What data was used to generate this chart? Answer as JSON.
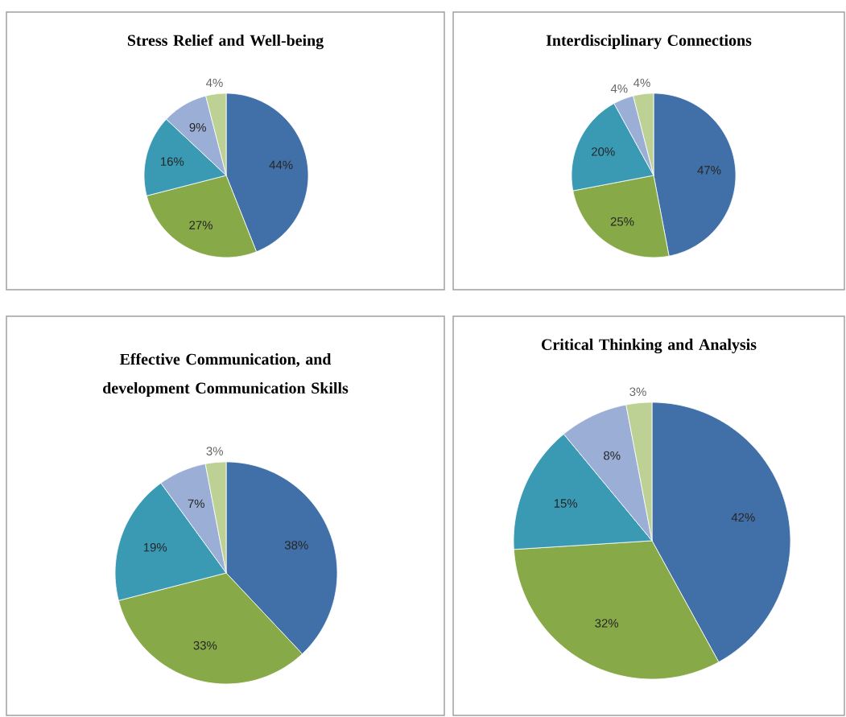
{
  "chart_data": [
    {
      "type": "pie",
      "title": "Stress Relief and Well-being",
      "categories": [
        null,
        null,
        null,
        null,
        null
      ],
      "values": [
        44,
        27,
        16,
        9,
        4
      ],
      "value_labels": [
        "44%",
        "27%",
        "16%",
        "9%",
        "4%"
      ],
      "colors": [
        "#4170a8",
        "#87a947",
        "#3a9ab4",
        "#9aaed6",
        "#bcd193"
      ]
    },
    {
      "type": "pie",
      "title": "Interdisciplinary Connections",
      "categories": [
        null,
        null,
        null,
        null,
        null
      ],
      "values": [
        47,
        25,
        20,
        4,
        4
      ],
      "value_labels": [
        "47%",
        "25%",
        "20%",
        "4%",
        "4%"
      ],
      "colors": [
        "#4170a8",
        "#87a947",
        "#3a9ab4",
        "#9aaed6",
        "#bcd193"
      ]
    },
    {
      "type": "pie",
      "title": "Effective Communication, and development Communication Skills",
      "categories": [
        null,
        null,
        null,
        null,
        null
      ],
      "values": [
        38,
        33,
        19,
        7,
        3
      ],
      "value_labels": [
        "38%",
        "33%",
        "19%",
        "7%",
        "3%"
      ],
      "colors": [
        "#4170a8",
        "#87a947",
        "#3a9ab4",
        "#9aaed6",
        "#bcd193"
      ]
    },
    {
      "type": "pie",
      "title": "Critical Thinking and Analysis",
      "categories": [
        null,
        null,
        null,
        null,
        null
      ],
      "values": [
        42,
        32,
        15,
        8,
        3
      ],
      "value_labels": [
        "42%",
        "32%",
        "15%",
        "8%",
        "3%"
      ],
      "colors": [
        "#4170a8",
        "#87a947",
        "#3a9ab4",
        "#9aaed6",
        "#bcd193"
      ]
    }
  ]
}
